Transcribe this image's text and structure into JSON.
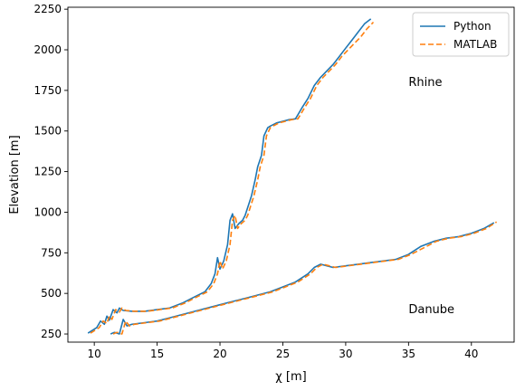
{
  "chart_data": {
    "type": "line",
    "xlabel": "χ [m]",
    "ylabel": "Elevation [m]",
    "xlim": [
      7.9,
      43.4
    ],
    "ylim": [
      200,
      2262
    ],
    "xticks": [
      10,
      15,
      20,
      25,
      30,
      35,
      40
    ],
    "yticks": [
      250,
      500,
      750,
      1000,
      1250,
      1500,
      1750,
      2000,
      2250
    ],
    "grid": false,
    "legend_position": "top-right",
    "annotations": [
      {
        "text": "Rhine",
        "x": 35.0,
        "y": 1800
      },
      {
        "text": "Danube",
        "x": 35.0,
        "y": 400
      }
    ],
    "series": [
      {
        "name": "Python",
        "color": "#1f77b4",
        "dash": "solid",
        "lines": [
          {
            "label": "Rhine",
            "points": [
              [
                9.5,
                255
              ],
              [
                10.2,
                290
              ],
              [
                10.5,
                330
              ],
              [
                10.8,
                310
              ],
              [
                11.0,
                360
              ],
              [
                11.2,
                335
              ],
              [
                11.5,
                400
              ],
              [
                11.8,
                380
              ],
              [
                12.0,
                410
              ],
              [
                12.3,
                395
              ],
              [
                13.0,
                390
              ],
              [
                14.0,
                390
              ],
              [
                15.0,
                400
              ],
              [
                16.0,
                410
              ],
              [
                17.0,
                440
              ],
              [
                18.0,
                480
              ],
              [
                18.8,
                510
              ],
              [
                19.3,
                560
              ],
              [
                19.6,
                620
              ],
              [
                19.8,
                720
              ],
              [
                20.0,
                650
              ],
              [
                20.3,
                700
              ],
              [
                20.6,
                800
              ],
              [
                20.8,
                950
              ],
              [
                21.0,
                990
              ],
              [
                21.2,
                900
              ],
              [
                21.5,
                930
              ],
              [
                21.8,
                950
              ],
              [
                22.0,
                980
              ],
              [
                22.5,
                1100
              ],
              [
                22.8,
                1200
              ],
              [
                23.0,
                1280
              ],
              [
                23.3,
                1350
              ],
              [
                23.5,
                1470
              ],
              [
                23.8,
                1520
              ],
              [
                24.0,
                1530
              ],
              [
                24.5,
                1550
              ],
              [
                25.0,
                1560
              ],
              [
                25.5,
                1570
              ],
              [
                26.0,
                1575
              ],
              [
                26.2,
                1600
              ],
              [
                26.5,
                1640
              ],
              [
                27.0,
                1700
              ],
              [
                27.5,
                1780
              ],
              [
                28.0,
                1830
              ],
              [
                28.5,
                1870
              ],
              [
                29.0,
                1910
              ],
              [
                29.5,
                1960
              ],
              [
                30.0,
                2010
              ],
              [
                30.5,
                2060
              ],
              [
                31.0,
                2110
              ],
              [
                31.5,
                2160
              ],
              [
                32.0,
                2190
              ]
            ]
          },
          {
            "label": "Danube",
            "points": [
              [
                11.3,
                250
              ],
              [
                11.6,
                260
              ],
              [
                12.0,
                250
              ],
              [
                12.3,
                340
              ],
              [
                12.6,
                300
              ],
              [
                13.0,
                310
              ],
              [
                14.0,
                320
              ],
              [
                15.0,
                330
              ],
              [
                16.0,
                350
              ],
              [
                17.0,
                370
              ],
              [
                18.0,
                390
              ],
              [
                19.0,
                410
              ],
              [
                20.0,
                430
              ],
              [
                21.0,
                450
              ],
              [
                22.0,
                470
              ],
              [
                23.0,
                490
              ],
              [
                24.0,
                510
              ],
              [
                25.0,
                540
              ],
              [
                26.0,
                570
              ],
              [
                27.0,
                620
              ],
              [
                27.5,
                660
              ],
              [
                28.0,
                680
              ],
              [
                28.5,
                670
              ],
              [
                29.0,
                660
              ],
              [
                30.0,
                670
              ],
              [
                31.0,
                680
              ],
              [
                32.0,
                690
              ],
              [
                33.0,
                700
              ],
              [
                34.0,
                710
              ],
              [
                35.0,
                740
              ],
              [
                36.0,
                790
              ],
              [
                37.0,
                820
              ],
              [
                38.0,
                840
              ],
              [
                39.0,
                850
              ],
              [
                40.0,
                870
              ],
              [
                41.0,
                900
              ],
              [
                41.8,
                935
              ]
            ]
          }
        ]
      },
      {
        "name": "MATLAB",
        "color": "#ff7f0e",
        "dash": "dashed",
        "lines": [
          {
            "label": "Rhine",
            "points": [
              [
                9.7,
                255
              ],
              [
                10.4,
                290
              ],
              [
                10.7,
                330
              ],
              [
                11.0,
                315
              ],
              [
                11.2,
                360
              ],
              [
                11.4,
                340
              ],
              [
                11.7,
                400
              ],
              [
                12.0,
                385
              ],
              [
                12.2,
                410
              ],
              [
                12.5,
                395
              ],
              [
                13.2,
                390
              ],
              [
                14.2,
                390
              ],
              [
                15.2,
                400
              ],
              [
                16.2,
                410
              ],
              [
                17.2,
                440
              ],
              [
                18.2,
                480
              ],
              [
                19.0,
                510
              ],
              [
                19.5,
                560
              ],
              [
                19.8,
                620
              ],
              [
                20.0,
                700
              ],
              [
                20.2,
                650
              ],
              [
                20.5,
                700
              ],
              [
                20.8,
                800
              ],
              [
                21.0,
                950
              ],
              [
                21.2,
                980
              ],
              [
                21.4,
                900
              ],
              [
                21.7,
                930
              ],
              [
                22.0,
                950
              ],
              [
                22.2,
                980
              ],
              [
                22.7,
                1100
              ],
              [
                23.0,
                1200
              ],
              [
                23.2,
                1280
              ],
              [
                23.5,
                1350
              ],
              [
                23.7,
                1470
              ],
              [
                24.0,
                1520
              ],
              [
                24.2,
                1530
              ],
              [
                24.7,
                1550
              ],
              [
                25.2,
                1560
              ],
              [
                25.7,
                1570
              ],
              [
                26.2,
                1575
              ],
              [
                26.4,
                1600
              ],
              [
                26.7,
                1640
              ],
              [
                27.2,
                1700
              ],
              [
                27.7,
                1780
              ],
              [
                28.2,
                1830
              ],
              [
                28.7,
                1870
              ],
              [
                29.2,
                1910
              ],
              [
                29.7,
                1960
              ],
              [
                30.2,
                2000
              ],
              [
                30.7,
                2040
              ],
              [
                31.2,
                2080
              ],
              [
                31.7,
                2130
              ],
              [
                32.2,
                2170
              ]
            ]
          },
          {
            "label": "Danube",
            "points": [
              [
                11.5,
                250
              ],
              [
                11.8,
                260
              ],
              [
                12.2,
                250
              ],
              [
                12.5,
                330
              ],
              [
                12.8,
                300
              ],
              [
                13.2,
                310
              ],
              [
                14.2,
                320
              ],
              [
                15.2,
                330
              ],
              [
                16.2,
                350
              ],
              [
                17.2,
                370
              ],
              [
                18.2,
                390
              ],
              [
                19.2,
                410
              ],
              [
                20.2,
                430
              ],
              [
                21.2,
                450
              ],
              [
                22.2,
                470
              ],
              [
                23.2,
                490
              ],
              [
                24.2,
                510
              ],
              [
                25.2,
                540
              ],
              [
                26.2,
                570
              ],
              [
                27.2,
                620
              ],
              [
                27.7,
                660
              ],
              [
                28.2,
                680
              ],
              [
                28.7,
                670
              ],
              [
                29.2,
                660
              ],
              [
                30.2,
                670
              ],
              [
                31.2,
                680
              ],
              [
                32.2,
                690
              ],
              [
                33.2,
                700
              ],
              [
                34.2,
                710
              ],
              [
                35.2,
                740
              ],
              [
                36.2,
                780
              ],
              [
                37.2,
                820
              ],
              [
                38.2,
                840
              ],
              [
                39.2,
                850
              ],
              [
                40.2,
                870
              ],
              [
                41.2,
                900
              ],
              [
                42.0,
                940
              ]
            ]
          }
        ]
      }
    ]
  }
}
